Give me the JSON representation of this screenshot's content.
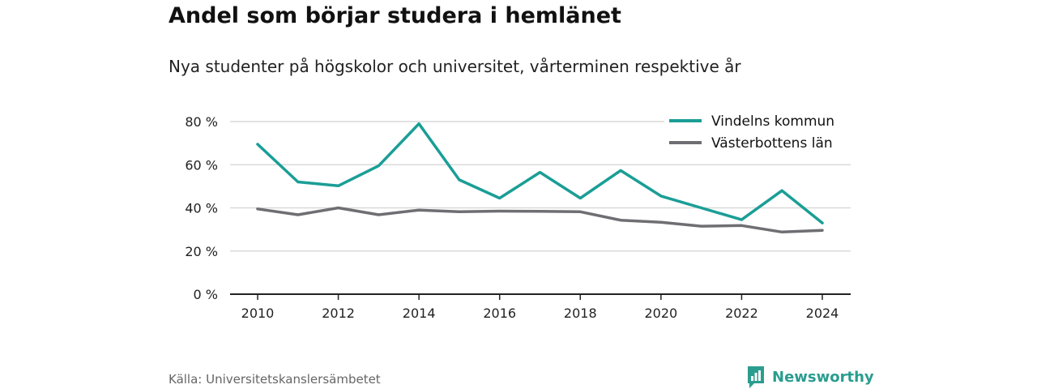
{
  "header": {
    "title": "Andel som börjar studera i hemlänet",
    "subtitle": "Nya studenter på högskolor och universitet, vårterminen respektive år"
  },
  "footer": {
    "source": "Källa: Universitetskanslersämbetet",
    "brand": "Newsworthy"
  },
  "colors": {
    "vindeln": "#1a9e96",
    "vasterbotten": "#6e6e73",
    "grid": "#d9d9d9",
    "axis": "#222222",
    "brand": "#2a9d8f"
  },
  "chart_data": {
    "type": "line",
    "x": [
      2010,
      2011,
      2012,
      2013,
      2014,
      2015,
      2016,
      2017,
      2018,
      2019,
      2020,
      2021,
      2022,
      2023,
      2024
    ],
    "x_ticks": [
      "2010",
      "2012",
      "2014",
      "2016",
      "2018",
      "2020",
      "2022",
      "2024"
    ],
    "y_ticks": [
      "0 %",
      "20 %",
      "40 %",
      "60 %",
      "80 %"
    ],
    "ylim": [
      0,
      80
    ],
    "series": [
      {
        "name": "Vindelns kommun",
        "values": [
          69.5,
          52,
          50.2,
          59.5,
          79,
          53,
          44.5,
          56.5,
          44.5,
          57.3,
          45.5,
          40,
          34.5,
          48,
          33
        ]
      },
      {
        "name": "Västerbottens län",
        "values": [
          39.5,
          36.8,
          40,
          36.8,
          39,
          38.2,
          38.5,
          38.4,
          38.2,
          34.3,
          33.3,
          31.5,
          31.8,
          28.8,
          29.6
        ]
      }
    ],
    "legend_position": "top-right",
    "grid": true
  }
}
